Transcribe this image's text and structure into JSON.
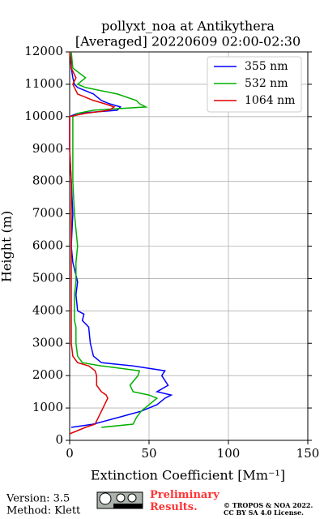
{
  "chart_data": {
    "type": "line",
    "title": "pollyxt_noa at Antikythera",
    "subtitle": "[Averaged] 20220609 02:00-02:30",
    "x_label": "Extinction Coefficient [Mm⁻¹]",
    "y_label": "Height (m)",
    "y": [
      200,
      300,
      400,
      500,
      700,
      900,
      1100,
      1300,
      1400,
      1500,
      1700,
      2000,
      2150,
      2300,
      2400,
      2600,
      3000,
      3500,
      3700,
      3900,
      4000,
      4500,
      4900,
      5500,
      6000,
      7000,
      8000,
      9000,
      10000,
      10100,
      10200,
      10300,
      10400,
      10500,
      10700,
      10900,
      11000,
      11200,
      11500,
      12000
    ],
    "series": [
      {
        "name": "355 nm",
        "color": "#0000ff",
        "values": [
          null,
          null,
          1,
          15,
          30,
          45,
          55,
          60,
          64,
          55,
          62,
          58,
          60,
          40,
          20,
          15,
          13,
          12,
          8,
          9,
          5,
          4,
          5,
          2,
          1,
          2,
          1,
          0,
          0,
          5,
          30,
          32,
          25,
          20,
          15,
          5,
          3,
          2,
          1,
          1
        ]
      },
      {
        "name": "532 nm",
        "color": "#00b000",
        "values": [
          null,
          null,
          20,
          40,
          42,
          45,
          50,
          55,
          50,
          40,
          38,
          43,
          44,
          20,
          8,
          5,
          4,
          4,
          3,
          3,
          3,
          3,
          4,
          4,
          5,
          3,
          2,
          2,
          2,
          5,
          15,
          48,
          44,
          42,
          30,
          10,
          5,
          10,
          2,
          1
        ]
      },
      {
        "name": "1064 nm",
        "color": "#e00000",
        "values": [
          0,
          5,
          10,
          16,
          18,
          20,
          22,
          24,
          23,
          20,
          17,
          17,
          16,
          12,
          5,
          2,
          1,
          1,
          1,
          1,
          1,
          1,
          1,
          1,
          1,
          1,
          1,
          0,
          0,
          10,
          25,
          28,
          22,
          15,
          5,
          3,
          2,
          4,
          1,
          0
        ]
      }
    ],
    "xlim": [
      0,
      150
    ],
    "xticks": [
      0,
      50,
      100,
      150
    ],
    "ylim": [
      0,
      12000
    ],
    "yticks": [
      0,
      1000,
      2000,
      3000,
      4000,
      5000,
      6000,
      7000,
      8000,
      9000,
      10000,
      11000,
      12000
    ],
    "grid": true,
    "legend": "upper right"
  },
  "footer": {
    "version": "Version: 3.5",
    "method": "Method: Klett",
    "status": "Preliminary Results.",
    "copyright": "© TROPOS & NOA 2022.",
    "license": "CC BY SA 4.0 License."
  }
}
